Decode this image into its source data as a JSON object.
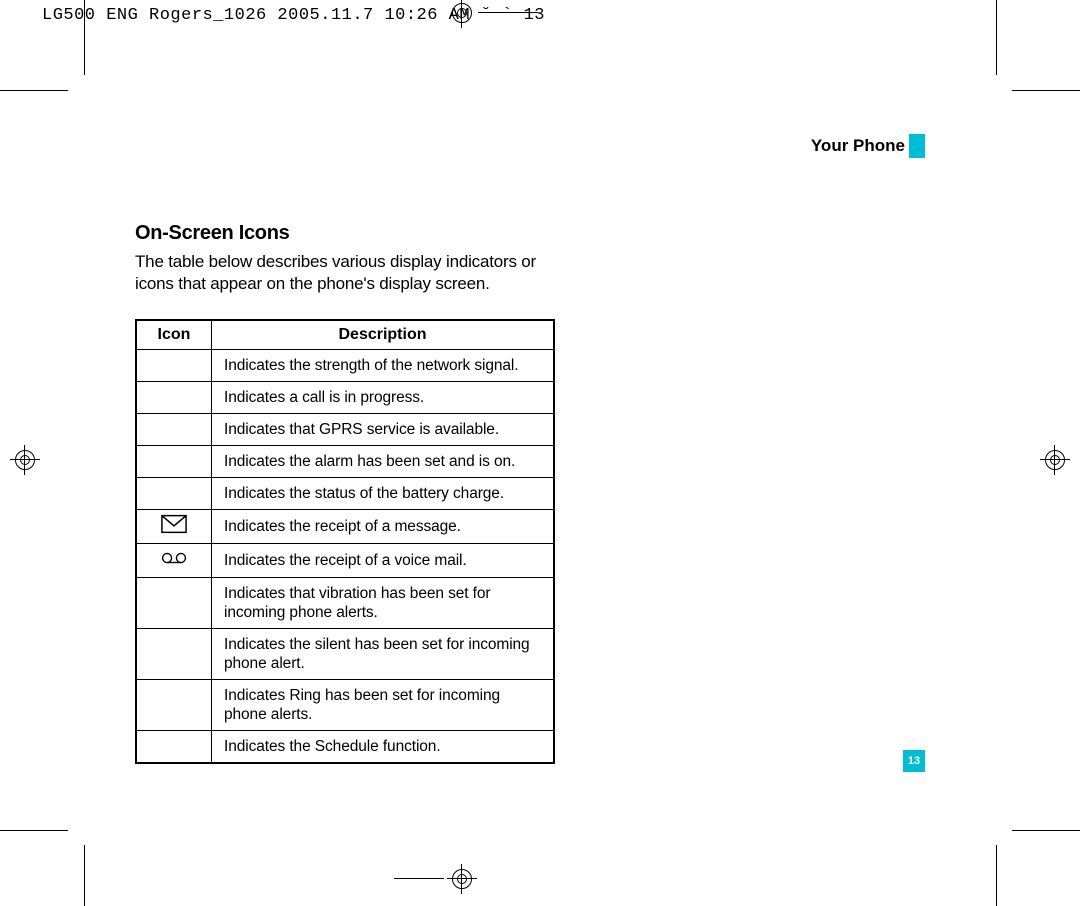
{
  "header_line": "LG500 ENG Rogers_1026  2005.11.7 10:26 AM  ˘  ` 13",
  "section_label": "Your Phone",
  "heading": "On-Screen Icons",
  "intro": "The table below describes various display indicators or icons that appear on the phone's display screen.",
  "table": {
    "columns": [
      "Icon",
      "Description"
    ],
    "rows": [
      {
        "icon": "",
        "desc": "Indicates the strength of the network signal."
      },
      {
        "icon": "",
        "desc": "Indicates a call is in progress."
      },
      {
        "icon": "",
        "desc": "Indicates that GPRS service is available."
      },
      {
        "icon": "",
        "desc": "Indicates the alarm has been set and is on."
      },
      {
        "icon": "",
        "desc": "Indicates the status of the battery charge."
      },
      {
        "icon": "envelope",
        "desc": "Indicates the receipt of a message."
      },
      {
        "icon": "voicemail",
        "desc": "Indicates the receipt of a voice mail."
      },
      {
        "icon": "",
        "desc": "Indicates that vibration has been set for incoming phone alerts."
      },
      {
        "icon": "",
        "desc": "Indicates the silent has been set for incoming phone alert."
      },
      {
        "icon": "",
        "desc": "Indicates Ring has been set for incoming phone alerts."
      },
      {
        "icon": "",
        "desc": "Indicates the Schedule function."
      }
    ]
  },
  "page_number": "13",
  "colors": {
    "accent": "#00bdd6",
    "text": "#000000",
    "background": "#ffffff"
  }
}
